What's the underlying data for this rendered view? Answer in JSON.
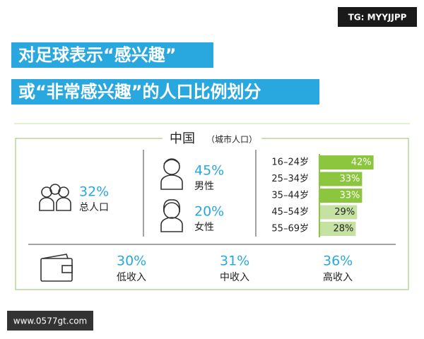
{
  "tag": "TG: MYYJJPP",
  "title_lines": [
    "对足球表示“感兴趣”",
    "或“非常感兴趣”的人口比例划分"
  ],
  "panel": {
    "heading": "中国",
    "subheading": "（城市人口）",
    "total": {
      "value": "32%",
      "label": "总人口"
    },
    "gender": [
      {
        "value": "45%",
        "label": "男性"
      },
      {
        "value": "20%",
        "label": "女性"
      }
    ],
    "age_bars": {
      "categories": [
        "16–24岁",
        "25–34岁",
        "35–44岁",
        "45–54岁",
        "55–69岁"
      ],
      "values": [
        42,
        33,
        33,
        29,
        28
      ],
      "value_labels": [
        "42%",
        "33%",
        "33%",
        "29%",
        "28%"
      ],
      "colors": [
        "#8cc63f",
        "#8cc63f",
        "#8cc63f",
        "#c6e2a2",
        "#c6e2a2"
      ]
    },
    "income": [
      {
        "value": "30%",
        "label": "低收入"
      },
      {
        "value": "31%",
        "label": "中收入"
      },
      {
        "value": "36%",
        "label": "高收入"
      }
    ]
  },
  "watermark": "www.0577gt.com"
}
